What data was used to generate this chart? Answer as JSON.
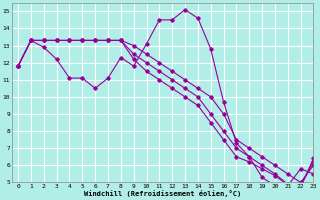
{
  "xlabel": "Windchill (Refroidissement éolien,°C)",
  "background_color": "#b2eee8",
  "line_color": "#990099",
  "grid_color": "#ffffff",
  "xlim": [
    -0.5,
    23
  ],
  "ylim": [
    5,
    15.5
  ],
  "yticks": [
    5,
    6,
    7,
    8,
    9,
    10,
    11,
    12,
    13,
    14,
    15
  ],
  "xticks": [
    0,
    1,
    2,
    3,
    4,
    5,
    6,
    7,
    8,
    9,
    10,
    11,
    12,
    13,
    14,
    15,
    16,
    17,
    18,
    19,
    20,
    21,
    22,
    23
  ],
  "series1_x": [
    0,
    1,
    2,
    3,
    4,
    5,
    6,
    7,
    8,
    9,
    10,
    11,
    12,
    13,
    14,
    15,
    16,
    17,
    18,
    19,
    20,
    21,
    22,
    23
  ],
  "series1_y": [
    11.8,
    13.3,
    12.9,
    12.2,
    11.1,
    11.1,
    10.5,
    11.1,
    12.3,
    11.8,
    13.1,
    14.5,
    14.5,
    15.1,
    14.6,
    12.8,
    9.7,
    7.3,
    6.5,
    5.3,
    4.8,
    4.8,
    5.8,
    5.5
  ],
  "series2_x": [
    0,
    1,
    2,
    3,
    4,
    5,
    6,
    7,
    8,
    9,
    10,
    11,
    12,
    13,
    14,
    15,
    16,
    17,
    18,
    19,
    20,
    21,
    22,
    23
  ],
  "series2_y": [
    11.8,
    13.3,
    13.3,
    13.3,
    13.3,
    13.3,
    13.3,
    13.3,
    13.3,
    13.0,
    12.5,
    12.0,
    11.5,
    11.0,
    10.5,
    10.0,
    9.0,
    7.5,
    7.0,
    6.5,
    6.0,
    5.5,
    5.0,
    6.0
  ],
  "series3_x": [
    0,
    1,
    2,
    3,
    4,
    5,
    6,
    7,
    8,
    9,
    10,
    11,
    12,
    13,
    14,
    15,
    16,
    17,
    18,
    19,
    20,
    21,
    22,
    23
  ],
  "series3_y": [
    11.8,
    13.3,
    13.3,
    13.3,
    13.3,
    13.3,
    13.3,
    13.3,
    13.3,
    12.5,
    12.0,
    11.5,
    11.0,
    10.5,
    10.0,
    9.0,
    8.0,
    7.0,
    6.5,
    6.0,
    5.5,
    4.9,
    4.8,
    6.2
  ],
  "series4_x": [
    0,
    1,
    2,
    3,
    4,
    5,
    6,
    7,
    8,
    9,
    10,
    11,
    12,
    13,
    14,
    15,
    16,
    17,
    18,
    19,
    20,
    21,
    22,
    23
  ],
  "series4_y": [
    11.8,
    13.3,
    13.3,
    13.3,
    13.3,
    13.3,
    13.3,
    13.3,
    13.3,
    12.2,
    11.5,
    11.0,
    10.5,
    10.0,
    9.5,
    8.5,
    7.5,
    6.5,
    6.2,
    5.8,
    5.4,
    4.85,
    4.75,
    6.4
  ]
}
